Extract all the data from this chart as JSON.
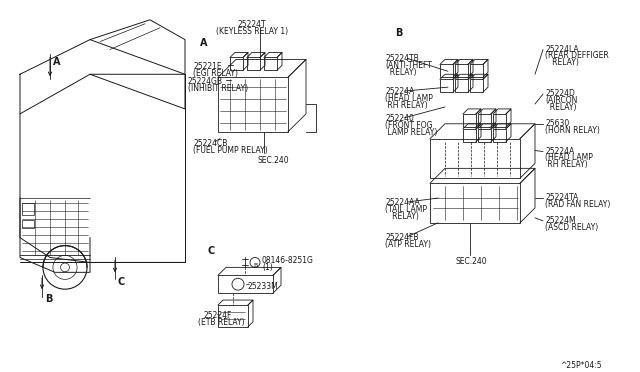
{
  "bg_color": "#f5f5f0",
  "line_color": "#4a4a4a",
  "part_number": "^25P*04:5",
  "car_label_A": "A",
  "car_label_B": "B",
  "car_label_C": "C",
  "sec_A_top_code": "25224T",
  "sec_A_top_name": "(KEYLESS RELAY 1)",
  "sec_A_label": "A",
  "sec_B_label": "B",
  "sec_C_label": "C",
  "sec_A_left_labels": [
    [
      "25221E",
      "(EGI RELAY)"
    ],
    [
      "25224GB",
      "(INHIBIT RELAY)"
    ]
  ],
  "sec_A_bottom_code": "25224CB",
  "sec_A_bottom_name": "(FUEL PUMP RELAY)",
  "sec_A_sec240": "SEC.240",
  "sec_B_left": [
    [
      "25224TB",
      "(ANTI-THEFT",
      "  RELAY)"
    ],
    [
      "25224A",
      "(HEAD LAMP",
      " RH RELAY)"
    ],
    [
      "252240",
      "(FRONT FOG",
      " LAMP RELAY)"
    ],
    [
      "25224AA",
      "(TAIL LAMP",
      "  RELAY)"
    ],
    [
      "25224FB",
      "(ATP RELAY)",
      ""
    ]
  ],
  "sec_B_right": [
    [
      "25224LA",
      "(REAR DEFFIGER",
      "   RELAY)"
    ],
    [
      "25224D",
      "(AIRCON",
      "  RELAY)"
    ],
    [
      "25630",
      "(HORN RELAY)",
      ""
    ],
    [
      "25224A",
      "(HEAD LAMP",
      " RH RELAY)"
    ],
    [
      "25224TA",
      "(RAD FAN RELAY)",
      ""
    ],
    [
      "25224M",
      "(ASCD RELAY)",
      ""
    ]
  ],
  "sec_B_sec240": "SEC.240",
  "sec_C_bolt_code": "08146-8251G",
  "sec_C_bolt_qty": "(1)",
  "sec_C_bracket_code": "25233M",
  "sec_C_relay_code": "25224F",
  "sec_C_relay_name": "(ETB RELAY)"
}
